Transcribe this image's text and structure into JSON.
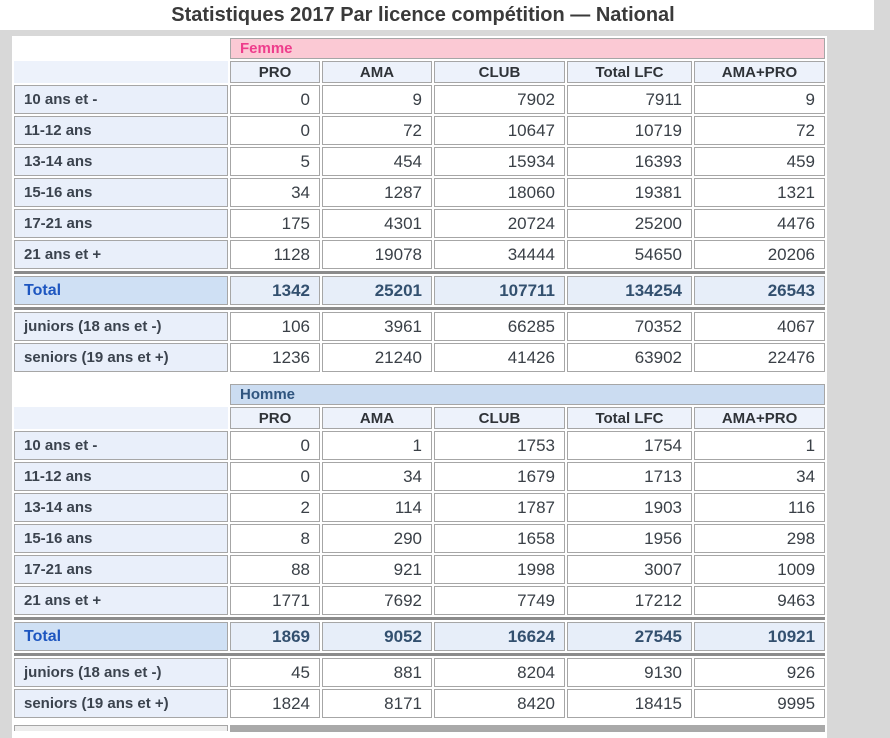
{
  "title": "Statistiques 2017 Par licence compétition — National",
  "colors": {
    "page_background": "#d8d8d8",
    "femme_banner_bg": "#fbc9d4",
    "femme_banner_text": "#ee3d8c",
    "homme_banner_bg": "#cbdcf1",
    "homme_banner_text": "#30557f",
    "column_header_bg": "#edf2fb",
    "row_label_bg": "#e9effa",
    "total_label_bg": "#cfe0f4",
    "total_label_text": "#1d56c0",
    "total_value_bg": "#e7eef9",
    "total_value_text": "#33506f",
    "cell_border": "#a6a6a6",
    "thick_separator": "#8b8b8b"
  },
  "chart_data": [
    {
      "type": "table",
      "title": "Femme",
      "style": "femme",
      "columns": [
        "PRO",
        "AMA",
        "CLUB",
        "Total LFC",
        "AMA+PRO"
      ],
      "age_rows": [
        {
          "label": "10 ans et -",
          "values": [
            "0",
            "9",
            "7902",
            "7911",
            "9"
          ]
        },
        {
          "label": "11-12 ans",
          "values": [
            "0",
            "72",
            "10647",
            "10719",
            "72"
          ]
        },
        {
          "label": "13-14 ans",
          "values": [
            "5",
            "454",
            "15934",
            "16393",
            "459"
          ]
        },
        {
          "label": "15-16 ans",
          "values": [
            "34",
            "1287",
            "18060",
            "19381",
            "1321"
          ]
        },
        {
          "label": "17-21 ans",
          "values": [
            "175",
            "4301",
            "20724",
            "25200",
            "4476"
          ]
        },
        {
          "label": "21 ans et +",
          "values": [
            "1128",
            "19078",
            "34444",
            "54650",
            "20206"
          ]
        }
      ],
      "total_row": {
        "label": "Total",
        "values": [
          "1342",
          "25201",
          "107711",
          "134254",
          "26543"
        ]
      },
      "summary_rows": [
        {
          "label": "juniors (18 ans et -)",
          "values": [
            "106",
            "3961",
            "66285",
            "70352",
            "4067"
          ]
        },
        {
          "label": "seniors (19 ans et +)",
          "values": [
            "1236",
            "21240",
            "41426",
            "63902",
            "22476"
          ]
        }
      ]
    },
    {
      "type": "table",
      "title": "Homme",
      "style": "homme",
      "columns": [
        "PRO",
        "AMA",
        "CLUB",
        "Total LFC",
        "AMA+PRO"
      ],
      "age_rows": [
        {
          "label": "10 ans et -",
          "values": [
            "0",
            "1",
            "1753",
            "1754",
            "1"
          ]
        },
        {
          "label": "11-12 ans",
          "values": [
            "0",
            "34",
            "1679",
            "1713",
            "34"
          ]
        },
        {
          "label": "13-14 ans",
          "values": [
            "2",
            "114",
            "1787",
            "1903",
            "116"
          ]
        },
        {
          "label": "15-16 ans",
          "values": [
            "8",
            "290",
            "1658",
            "1956",
            "298"
          ]
        },
        {
          "label": "17-21 ans",
          "values": [
            "88",
            "921",
            "1998",
            "3007",
            "1009"
          ]
        },
        {
          "label": "21 ans et +",
          "values": [
            "1771",
            "7692",
            "7749",
            "17212",
            "9463"
          ]
        }
      ],
      "total_row": {
        "label": "Total",
        "values": [
          "1869",
          "9052",
          "16624",
          "27545",
          "10921"
        ]
      },
      "summary_rows": [
        {
          "label": "juniors (18 ans et -)",
          "values": [
            "45",
            "881",
            "8204",
            "9130",
            "926"
          ]
        },
        {
          "label": "seniors (19 ans et +)",
          "values": [
            "1824",
            "8171",
            "8420",
            "18415",
            "9995"
          ]
        }
      ]
    }
  ]
}
